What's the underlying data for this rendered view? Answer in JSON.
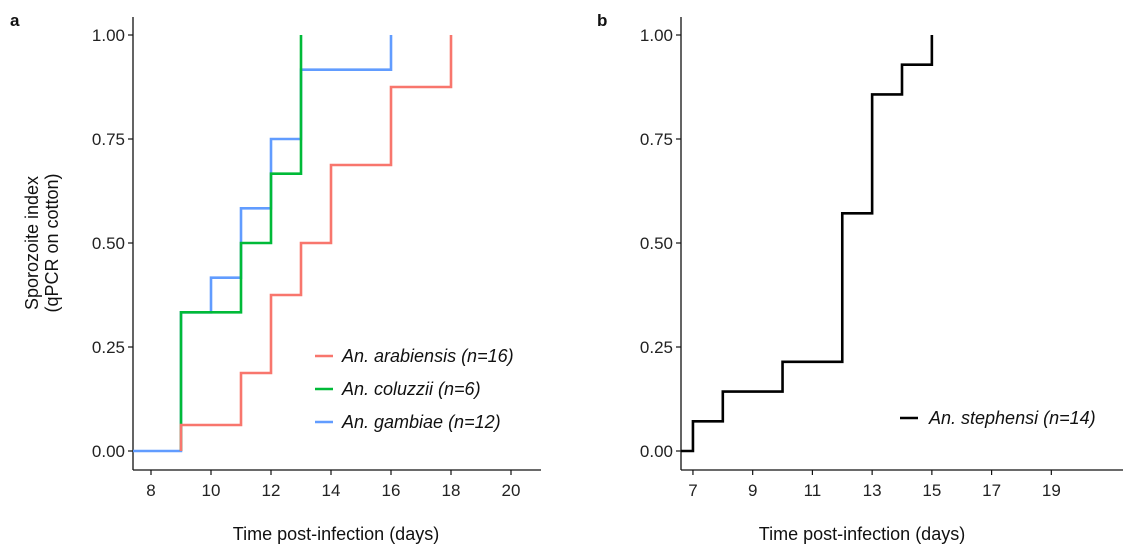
{
  "chart_data": [
    {
      "panel": "a",
      "type": "line",
      "step": true,
      "xlabel": "Time post-infection (days)",
      "ylabel_lines": [
        "Sporozoite index",
        "(qPCR on cotton)"
      ],
      "xlim": [
        7.4,
        21
      ],
      "ylim": [
        -0.05,
        1.04
      ],
      "xticks": [
        8,
        10,
        12,
        14,
        16,
        18,
        20
      ],
      "yticks": [
        0.0,
        0.25,
        0.5,
        0.75,
        1.0
      ],
      "ytick_labels": [
        "0.00",
        "0.25",
        "0.50",
        "0.75",
        "1.00"
      ],
      "series": [
        {
          "name": "An. arabiensis (n=16)",
          "color": "#F8766D",
          "x": [
            9,
            11,
            12,
            13,
            14,
            16,
            18
          ],
          "y": [
            0.0625,
            0.1875,
            0.375,
            0.5,
            0.6875,
            0.875,
            1.0
          ],
          "x_start": 9,
          "y_start": 0.0
        },
        {
          "name": "An. coluzzii (n=6)",
          "color": "#00BA38",
          "x": [
            9,
            11,
            12,
            13
          ],
          "y": [
            0.3333,
            0.5,
            0.6667,
            1.0
          ],
          "x_start": 9,
          "y_start": 0.0
        },
        {
          "name": "An. gambiae (n=12)",
          "color": "#619CFF",
          "x": [
            9,
            10,
            11,
            12,
            13,
            16
          ],
          "y": [
            0.3333,
            0.4167,
            0.5833,
            0.75,
            0.9167,
            1.0
          ],
          "x_start": 7.4,
          "y_start": 0.0
        }
      ],
      "legend_position": "bottom-right"
    },
    {
      "panel": "b",
      "type": "line",
      "step": true,
      "xlabel": "Time post-infection (days)",
      "ylabel_lines": [],
      "xlim": [
        6.6,
        21.4
      ],
      "ylim": [
        -0.05,
        1.04
      ],
      "xticks": [
        7,
        9,
        11,
        13,
        15,
        17,
        19
      ],
      "yticks": [
        0.0,
        0.25,
        0.5,
        0.75,
        1.0
      ],
      "ytick_labels": [
        "0.00",
        "0.25",
        "0.50",
        "0.75",
        "1.00"
      ],
      "series": [
        {
          "name": "An. stephensi (n=14)",
          "color": "#000000",
          "x": [
            7,
            8,
            10,
            12,
            13,
            14,
            15
          ],
          "y": [
            0.0714,
            0.1429,
            0.2143,
            0.5714,
            0.8571,
            0.9286,
            1.0
          ],
          "x_start": 6.6,
          "y_start": 0.0
        }
      ],
      "legend_position": "bottom-right"
    }
  ]
}
